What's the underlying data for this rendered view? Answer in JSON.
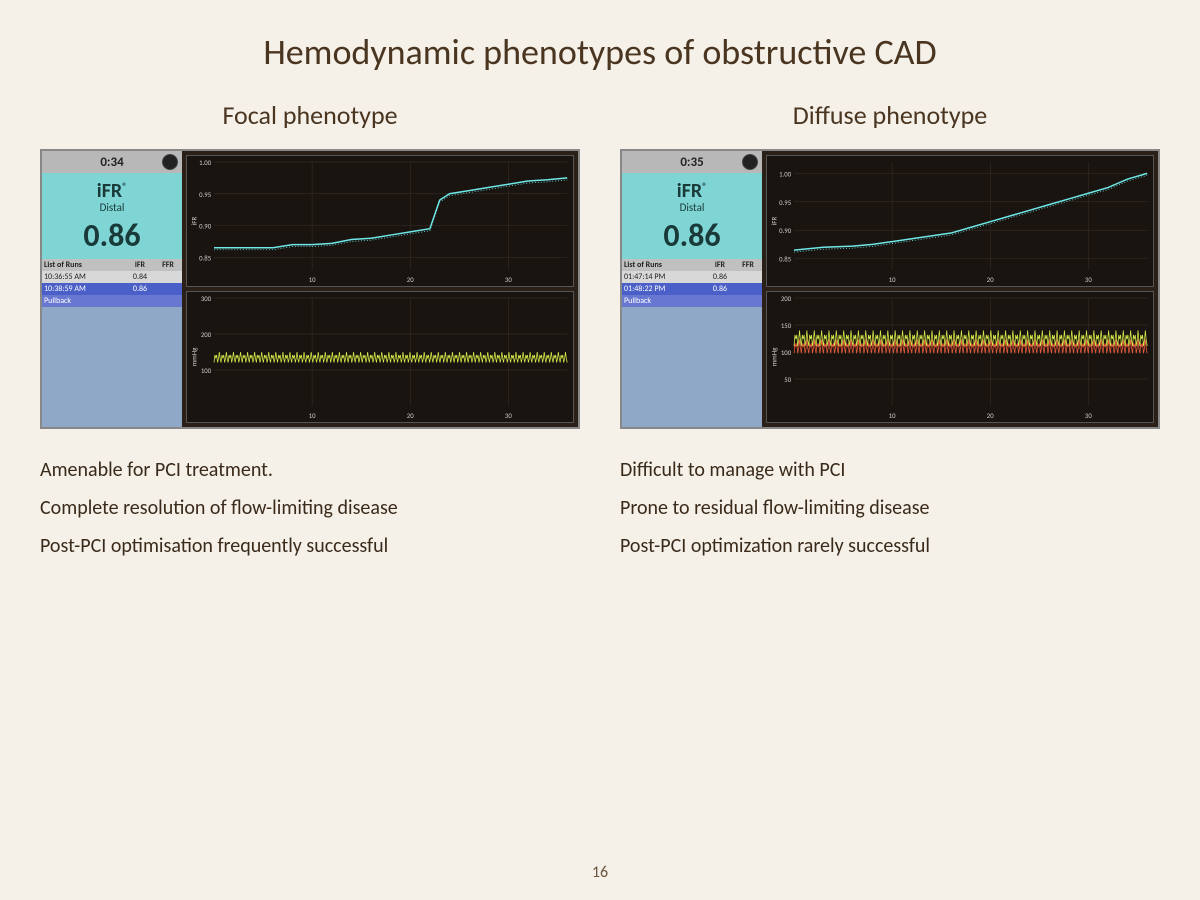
{
  "title": "Hemodynamic phenotypes of obstructive CAD",
  "page_number": "16",
  "left": {
    "subtitle": "Focal phenotype",
    "timer": "0:34",
    "ifr_label": "iFR",
    "ifr_reg": "®",
    "distal": "Distal",
    "ifr_value": "0.86",
    "runs_header": {
      "c1": "List of Runs",
      "c2": "iFR",
      "c3": "FFR"
    },
    "runs": [
      {
        "t": "10:36:55 AM",
        "ifr": "0.84",
        "ffr": "",
        "sel": false
      },
      {
        "t": "10:38:59 AM",
        "ifr": "0.86",
        "ffr": "",
        "sel": true
      },
      {
        "t": "Pullback",
        "ifr": "",
        "ffr": "",
        "pb": true
      }
    ],
    "top_chart": {
      "ylabel": "iFR",
      "xticks": [
        10,
        20,
        30
      ],
      "yticks": [
        "0.85",
        "0.90",
        "0.95",
        "1.00"
      ],
      "ylim": [
        0.83,
        1.0
      ],
      "line_color": "#6ee8e8",
      "grid_color": "#3a332a",
      "points": [
        [
          0,
          0.865
        ],
        [
          3,
          0.865
        ],
        [
          6,
          0.865
        ],
        [
          8,
          0.87
        ],
        [
          10,
          0.87
        ],
        [
          12,
          0.872
        ],
        [
          14,
          0.878
        ],
        [
          16,
          0.88
        ],
        [
          18,
          0.885
        ],
        [
          20,
          0.89
        ],
        [
          22,
          0.895
        ],
        [
          23,
          0.94
        ],
        [
          24,
          0.95
        ],
        [
          26,
          0.955
        ],
        [
          28,
          0.96
        ],
        [
          30,
          0.965
        ],
        [
          32,
          0.97
        ],
        [
          34,
          0.972
        ],
        [
          36,
          0.975
        ]
      ]
    },
    "bottom_chart": {
      "ylabel": "mmHg",
      "xticks": [
        10,
        20,
        30
      ],
      "yticks": [
        "100",
        "200",
        "300"
      ],
      "ylim": [
        0,
        300
      ],
      "line_color": "#d4e84a",
      "grid_color": "#3a332a",
      "amp_low": 70,
      "amp_high": 150,
      "cycles": 50
    },
    "bullets": [
      "Amenable for PCI treatment.",
      "Complete resolution of flow-limiting disease",
      "Post-PCI optimisation frequently successful"
    ]
  },
  "right": {
    "subtitle": "Diffuse phenotype",
    "timer": "0:35",
    "ifr_label": "iFR",
    "ifr_reg": "®",
    "distal": "Distal",
    "ifr_value": "0.86",
    "runs_header": {
      "c1": "List of Runs",
      "c2": "iFR",
      "c3": "FFR"
    },
    "runs": [
      {
        "t": "01:47:14 PM",
        "ifr": "0.86",
        "ffr": "",
        "sel": false
      },
      {
        "t": "01:48:22 PM",
        "ifr": "0.86",
        "ffr": "",
        "sel": true
      },
      {
        "t": "Pullback",
        "ifr": "",
        "ffr": "",
        "pb": true
      }
    ],
    "top_chart": {
      "ylabel": "iFR",
      "xticks": [
        10,
        20,
        30
      ],
      "yticks": [
        "0.85",
        "0.90",
        "0.95",
        "1.00"
      ],
      "ylim": [
        0.83,
        1.02
      ],
      "line_color": "#6ee8e8",
      "grid_color": "#3a332a",
      "points": [
        [
          0,
          0.865
        ],
        [
          3,
          0.87
        ],
        [
          6,
          0.872
        ],
        [
          8,
          0.875
        ],
        [
          10,
          0.88
        ],
        [
          12,
          0.885
        ],
        [
          14,
          0.89
        ],
        [
          16,
          0.895
        ],
        [
          18,
          0.905
        ],
        [
          20,
          0.915
        ],
        [
          22,
          0.925
        ],
        [
          24,
          0.935
        ],
        [
          26,
          0.945
        ],
        [
          28,
          0.955
        ],
        [
          30,
          0.965
        ],
        [
          32,
          0.975
        ],
        [
          34,
          0.99
        ],
        [
          36,
          1.0
        ]
      ]
    },
    "bottom_chart": {
      "ylabel": "mmHg",
      "xticks": [
        10,
        20,
        30
      ],
      "yticks": [
        "50",
        "100",
        "150",
        "200"
      ],
      "ylim": [
        0,
        200
      ],
      "line_color": "#d4e84a",
      "line_color2": "#e85a3a",
      "grid_color": "#3a332a",
      "amp_low": 60,
      "amp_high": 140,
      "cycles": 48
    },
    "bullets": [
      "Difficult to manage with PCI",
      "Prone to residual flow-limiting disease",
      "Post-PCI optimization rarely successful"
    ]
  }
}
